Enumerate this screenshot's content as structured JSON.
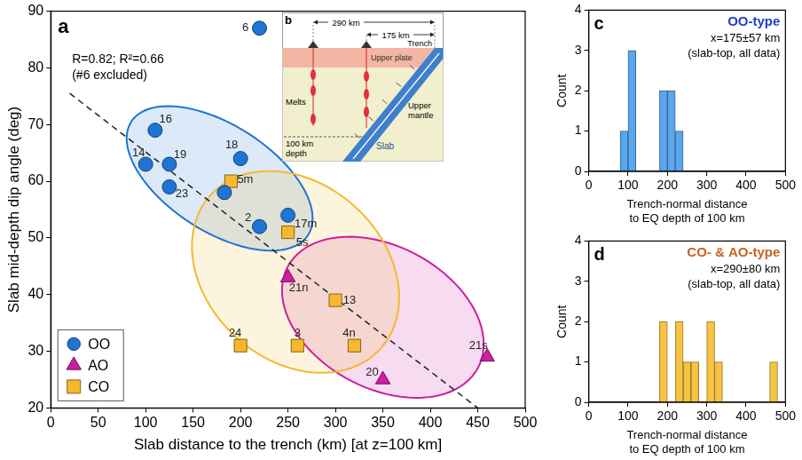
{
  "chart_data": [
    {
      "type": "scatter",
      "panel_label": "a",
      "x_label": "Slab distance to the trench (km) [at z=100 km]",
      "y_label": "Slab mid-depth dip angle (deg)",
      "xlim": [
        0,
        500
      ],
      "xticks": [
        0,
        50,
        100,
        150,
        200,
        250,
        300,
        350,
        400,
        450,
        500
      ],
      "ylim": [
        20,
        90
      ],
      "yticks": [
        20,
        30,
        40,
        50,
        60,
        70,
        80,
        90
      ],
      "grid": false,
      "legend": "lower left",
      "annotations": [
        "R=0.82; R²=0.66",
        "(#6 excluded)"
      ],
      "series": [
        {
          "name": "OO",
          "color": "#1f74d4",
          "marker": "circle",
          "x": [
            220,
            110,
            100,
            125,
            125,
            200,
            183,
            250,
            220
          ],
          "values": [
            87,
            69,
            63,
            63,
            59,
            64,
            58,
            54,
            52
          ],
          "point_labels": [
            "6",
            "16",
            "14",
            "19",
            "23",
            "18",
            null,
            "17m",
            "2"
          ],
          "ellipse": {
            "center": [
              178,
              60.5
            ],
            "major_end": [
              275,
              52
            ],
            "minor_end": [
              192,
              70
            ]
          }
        },
        {
          "name": "AO",
          "color": "#cc1fa3",
          "marker": "triangle",
          "x": [
            250,
            350,
            460
          ],
          "values": [
            43,
            25,
            29
          ],
          "point_labels": [
            "21n",
            "20",
            "21s"
          ],
          "ellipse": {
            "center": [
              350,
              36
            ],
            "major_end": [
              450,
              27
            ],
            "minor_end": [
              386,
              47
            ]
          }
        },
        {
          "name": "CO",
          "color": "#f5b82e",
          "marker": "square",
          "x": [
            190,
            250,
            300,
            200,
            260,
            320
          ],
          "values": [
            60,
            51,
            39,
            31,
            31,
            31
          ],
          "point_labels": [
            "5m",
            "5s",
            "13",
            "24",
            "3",
            "4n"
          ],
          "ellipse": {
            "center": [
              258,
              44
            ],
            "major_end": [
              345,
              30
            ],
            "minor_end": [
              324,
              55
            ]
          }
        }
      ],
      "fit_line": {
        "x": [
          20,
          450
        ],
        "values": [
          75.5,
          20
        ],
        "color": "#222222",
        "line_style": "dashed"
      }
    },
    {
      "type": "histogram",
      "panel_label": "c",
      "title": "OO-type",
      "annotations": [
        "x=175±57 km",
        "(slab-top, all data)"
      ],
      "x_label": [
        "Trench-normal distance",
        "to EQ depth of 100 km"
      ],
      "y_label": "Count",
      "bins": [
        80,
        100,
        120,
        140,
        160,
        180,
        200,
        220,
        240
      ],
      "counts": [
        1,
        3,
        0,
        0,
        0,
        2,
        2,
        1
      ],
      "color": "#5aa6ec",
      "xlim": [
        0,
        500
      ],
      "xticks": [
        0,
        100,
        200,
        300,
        400,
        500
      ],
      "ylim": [
        0,
        4
      ],
      "yticks": [
        0,
        1,
        2,
        3,
        4
      ],
      "grid": false
    },
    {
      "type": "histogram",
      "panel_label": "d",
      "title": "CO- & AO-type",
      "annotations": [
        "x=290±80 km",
        "(slab-top, all data)"
      ],
      "x_label": [
        "Trench-normal distance",
        "to EQ depth of 100 km"
      ],
      "y_label": "Count",
      "bins": [
        180,
        200,
        220,
        240,
        260,
        280,
        300,
        320,
        340,
        360,
        380,
        400,
        420,
        440,
        460,
        480
      ],
      "counts": [
        2,
        0,
        2,
        1,
        1,
        0,
        2,
        1,
        0,
        0,
        0,
        0,
        0,
        0,
        1
      ],
      "color": "#f7c343",
      "xlim": [
        0,
        500
      ],
      "xticks": [
        0,
        100,
        200,
        300,
        400,
        500
      ],
      "ylim": [
        0,
        4
      ],
      "yticks": [
        0,
        1,
        2,
        3,
        4
      ],
      "grid": false
    }
  ],
  "diagram": {
    "panel_label": "b",
    "distances": [
      "290 km",
      "175 km"
    ],
    "trench": "Trench",
    "upper_plate": "Upper plate",
    "melts": "Melts",
    "depth": [
      "100 km",
      "depth"
    ],
    "slab": "Slab",
    "upper_mantle": [
      "Upper",
      "mantle"
    ]
  }
}
